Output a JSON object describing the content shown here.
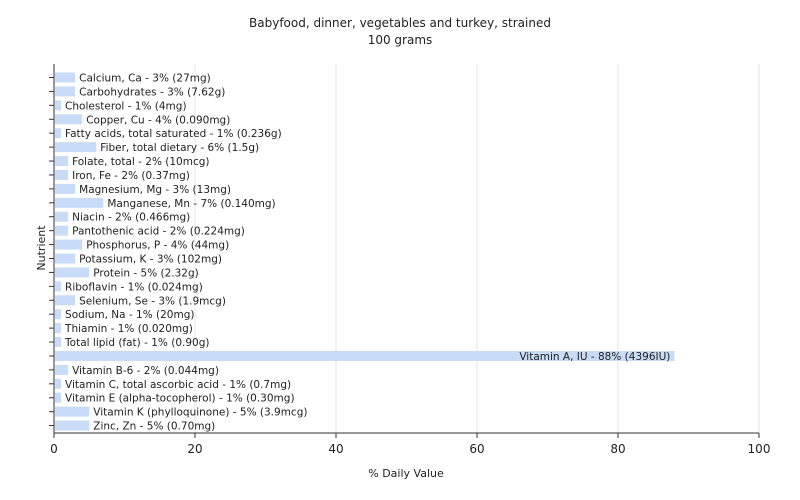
{
  "chart_data": {
    "type": "bar",
    "orientation": "horizontal",
    "title": "Babyfood, dinner, vegetables and turkey, strained",
    "subtitle": "100 grams",
    "xlabel": "% Daily Value",
    "ylabel": "Nutrient",
    "xlim": [
      0,
      100
    ],
    "xticks": [
      0,
      20,
      40,
      60,
      80,
      100
    ],
    "grid": true,
    "bar_color": "#c8dcf8",
    "categories": [
      "Calcium, Ca - 3% (27mg)",
      "Carbohydrates - 3% (7.62g)",
      "Cholesterol - 1% (4mg)",
      "Copper, Cu - 4% (0.090mg)",
      "Fatty acids, total saturated - 1% (0.236g)",
      "Fiber, total dietary - 6% (1.5g)",
      "Folate, total - 2% (10mcg)",
      "Iron, Fe - 2% (0.37mg)",
      "Magnesium, Mg - 3% (13mg)",
      "Manganese, Mn - 7% (0.140mg)",
      "Niacin - 2% (0.466mg)",
      "Pantothenic acid - 2% (0.224mg)",
      "Phosphorus, P - 4% (44mg)",
      "Potassium, K - 3% (102mg)",
      "Protein - 5% (2.32g)",
      "Riboflavin - 1% (0.024mg)",
      "Selenium, Se - 3% (1.9mcg)",
      "Sodium, Na - 1% (20mg)",
      "Thiamin - 1% (0.020mg)",
      "Total lipid (fat) - 1% (0.90g)",
      "Vitamin A, IU - 88% (4396IU)",
      "Vitamin B-6 - 2% (0.044mg)",
      "Vitamin C, total ascorbic acid - 1% (0.7mg)",
      "Vitamin E (alpha-tocopherol) - 1% (0.30mg)",
      "Vitamin K (phylloquinone) - 5% (3.9mcg)",
      "Zinc, Zn - 5% (0.70mg)"
    ],
    "values": [
      3,
      3,
      1,
      4,
      1,
      6,
      2,
      2,
      3,
      7,
      2,
      2,
      4,
      3,
      5,
      1,
      3,
      1,
      1,
      1,
      88,
      2,
      1,
      1,
      5,
      5
    ]
  }
}
